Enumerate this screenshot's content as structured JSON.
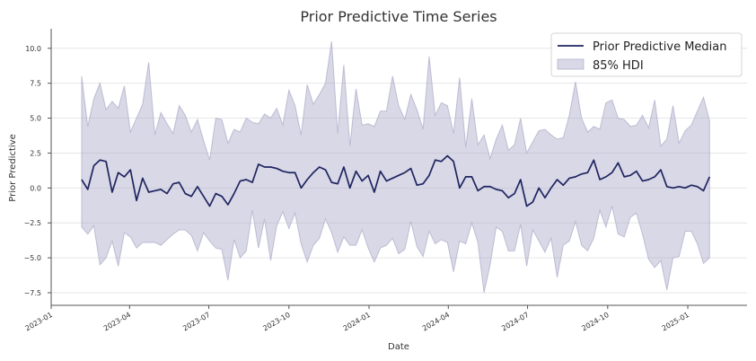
{
  "chart_data": {
    "type": "line",
    "title": "Prior Predictive Time Series",
    "xlabel": "Date",
    "ylabel": "Prior Predictive",
    "x_start": "2023-02-05",
    "x_freq": "weekly",
    "xlim": [
      "2023-01-01",
      "2025-03-10"
    ],
    "ylim": [
      -8.4,
      11.4
    ],
    "x_ticks": [
      "2023-01",
      "2023-04",
      "2023-07",
      "2023-10",
      "2024-01",
      "2024-04",
      "2024-07",
      "2024-10",
      "2025-01"
    ],
    "y_ticks": [
      -7.5,
      -5.0,
      -2.5,
      0.0,
      2.5,
      5.0,
      7.5,
      10.0
    ],
    "y_tick_labels": [
      "−7.5",
      "−5.0",
      "−2.5",
      "0.0",
      "2.5",
      "5.0",
      "7.5",
      "10.0"
    ],
    "grid": "horizontal",
    "legend_position": "top-right",
    "series": [
      {
        "name": "Prior Predictive Median",
        "kind": "line",
        "color": "#1f2460",
        "values": [
          0.6,
          -0.1,
          1.6,
          2.0,
          1.9,
          -0.3,
          1.1,
          0.8,
          1.3,
          -0.9,
          0.7,
          -0.3,
          -0.2,
          -0.1,
          -0.4,
          0.3,
          0.4,
          -0.4,
          -0.6,
          0.1,
          -0.6,
          -1.3,
          -0.4,
          -0.6,
          -1.2,
          -0.4,
          0.5,
          0.6,
          0.4,
          1.7,
          1.5,
          1.5,
          1.4,
          1.2,
          1.1,
          1.1,
          0.0,
          0.6,
          1.1,
          1.5,
          1.3,
          0.4,
          0.3,
          1.5,
          0.0,
          1.2,
          0.5,
          0.9,
          -0.3,
          1.2,
          0.5,
          0.7,
          0.9,
          1.1,
          1.4,
          0.2,
          0.3,
          0.9,
          2.0,
          1.9,
          2.3,
          1.9,
          0.0,
          0.8,
          0.8,
          -0.2,
          0.1,
          0.1,
          -0.1,
          -0.2,
          -0.7,
          -0.4,
          0.6,
          -1.3,
          -1.0,
          0.0,
          -0.7,
          0.0,
          0.6,
          0.2,
          0.7,
          0.8,
          1.0,
          1.1,
          2.0,
          0.6,
          0.8,
          1.1,
          1.8,
          0.8,
          0.9,
          1.2,
          0.5,
          0.6,
          0.8,
          1.3,
          0.1,
          0.0,
          0.1,
          0.0,
          0.2,
          0.1,
          -0.2,
          0.8
        ]
      },
      {
        "name": "85% HDI",
        "kind": "band",
        "color": "#a9a9c8",
        "upper": [
          8.0,
          4.4,
          6.4,
          7.5,
          5.6,
          6.2,
          5.7,
          7.3,
          4.0,
          5.0,
          6.0,
          9.0,
          3.8,
          5.4,
          4.6,
          3.9,
          5.9,
          5.2,
          4.0,
          4.9,
          3.4,
          2.0,
          5.0,
          4.9,
          3.2,
          4.2,
          4.0,
          5.0,
          4.7,
          4.6,
          5.3,
          5.0,
          5.7,
          4.5,
          7.0,
          5.9,
          3.8,
          7.4,
          6.0,
          6.7,
          7.5,
          10.5,
          3.9,
          8.8,
          3.0,
          7.1,
          4.5,
          4.6,
          4.4,
          5.5,
          5.5,
          8.0,
          5.9,
          4.9,
          6.7,
          5.6,
          4.2,
          9.4,
          5.2,
          6.1,
          5.9,
          3.9,
          7.9,
          2.9,
          6.4,
          3.1,
          3.8,
          2.1,
          3.5,
          4.5,
          2.7,
          3.1,
          5.0,
          2.5,
          3.3,
          4.1,
          4.2,
          3.8,
          3.5,
          3.6,
          5.2,
          7.6,
          5.0,
          4.0,
          4.4,
          4.2,
          6.1,
          6.3,
          5.0,
          4.9,
          4.4,
          4.5,
          5.2,
          4.3,
          6.3,
          3.0,
          3.5,
          5.9,
          3.2,
          4.1,
          4.5,
          5.5,
          6.5,
          4.8
        ],
        "lower": [
          -2.8,
          -3.3,
          -2.7,
          -5.5,
          -5.0,
          -3.8,
          -5.6,
          -3.2,
          -3.5,
          -4.3,
          -3.9,
          -3.9,
          -3.9,
          -4.1,
          -3.7,
          -3.3,
          -3.0,
          -3.0,
          -3.4,
          -4.5,
          -3.2,
          -3.8,
          -4.3,
          -4.4,
          -6.6,
          -3.7,
          -5.0,
          -4.5,
          -1.6,
          -4.3,
          -2.2,
          -5.2,
          -2.7,
          -1.7,
          -2.9,
          -1.8,
          -4.0,
          -5.3,
          -4.1,
          -3.6,
          -2.2,
          -3.2,
          -4.6,
          -3.5,
          -4.1,
          -4.1,
          -3.0,
          -4.3,
          -5.3,
          -4.3,
          -4.1,
          -3.6,
          -4.7,
          -4.4,
          -2.4,
          -4.2,
          -4.9,
          -3.1,
          -4.0,
          -3.7,
          -3.9,
          -6.0,
          -3.8,
          -4.0,
          -2.5,
          -3.9,
          -7.5,
          -5.5,
          -2.8,
          -3.1,
          -4.5,
          -4.5,
          -2.6,
          -5.6,
          -3.0,
          -3.8,
          -4.6,
          -3.6,
          -6.4,
          -4.1,
          -3.8,
          -2.4,
          -4.1,
          -4.5,
          -3.6,
          -1.6,
          -2.8,
          -1.3,
          -3.3,
          -3.5,
          -2.1,
          -1.8,
          -3.3,
          -5.1,
          -5.7,
          -5.2,
          -7.3,
          -5.0,
          -4.9,
          -3.1,
          -3.1,
          -4.0,
          -5.4,
          -5.0
        ]
      }
    ]
  }
}
